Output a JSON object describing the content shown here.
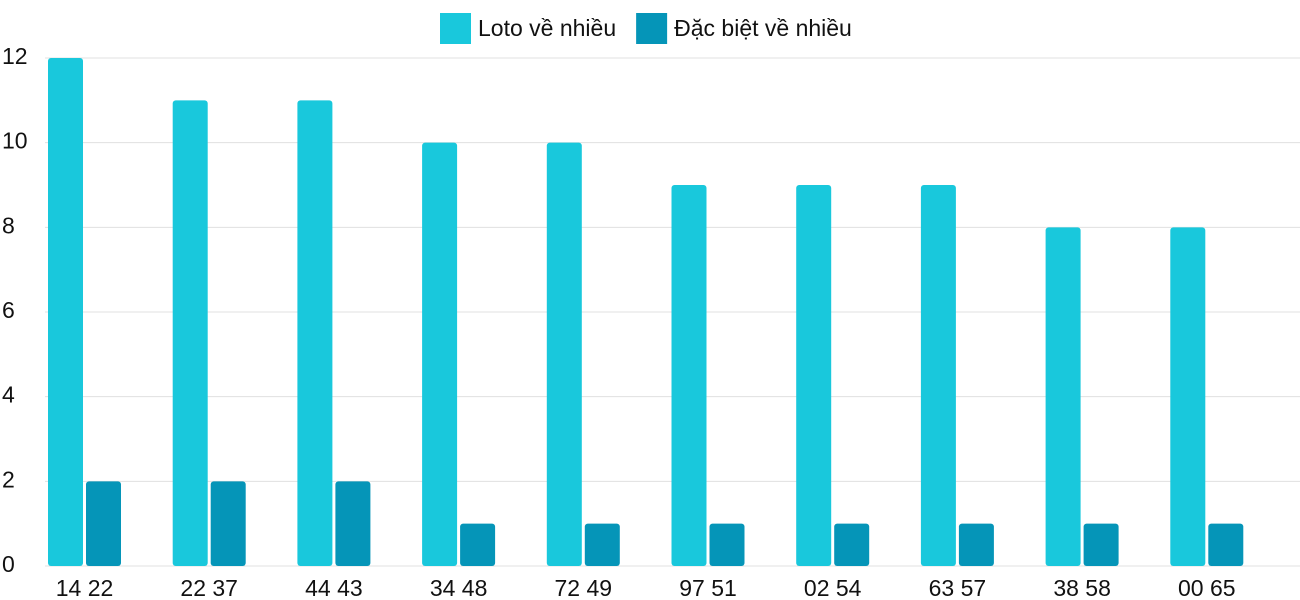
{
  "chart_data": {
    "type": "bar",
    "categories": [
      "14 22",
      "22 37",
      "44 43",
      "34 48",
      "72 49",
      "97 51",
      "02 54",
      "63 57",
      "38 58",
      "00 65"
    ],
    "series": [
      {
        "name": "Loto về nhiều",
        "color": "#19c8dc",
        "values": [
          12,
          11,
          11,
          10,
          10,
          9,
          9,
          9,
          8,
          8
        ]
      },
      {
        "name": "Đặc biệt về nhiều",
        "color": "#0595b8",
        "values": [
          2,
          2,
          2,
          1,
          1,
          1,
          1,
          1,
          1,
          1
        ]
      }
    ],
    "ylim": [
      0,
      12
    ],
    "yticks": [
      0,
      2,
      4,
      6,
      8,
      10,
      12
    ],
    "grid": true,
    "legend": "top"
  }
}
